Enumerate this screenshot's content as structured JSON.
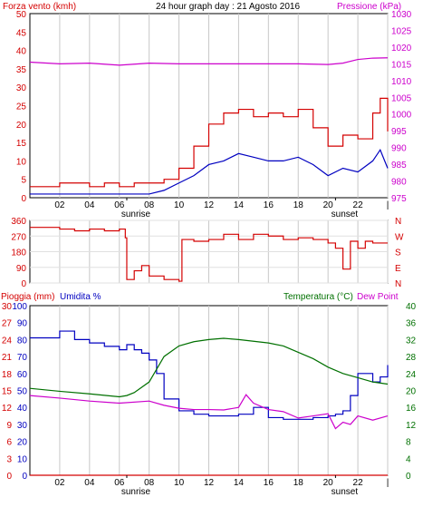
{
  "chart_data": [
    {
      "type": "line",
      "title": "24 hour graph day : 21 Agosto 2016",
      "ylabel_left": "Forza vento (kmh)",
      "ylabel_right": "Pressione (kPa)",
      "xlim": [
        0,
        24
      ],
      "x_ticks": [
        "02",
        "04",
        "06",
        "08",
        "10",
        "12",
        "14",
        "16",
        "18",
        "20",
        "22",
        "|"
      ],
      "markers": [
        {
          "label": "sunrise",
          "x": 6.5
        },
        {
          "label": "sunset",
          "x": 20.5
        }
      ],
      "ylim_left": [
        0,
        50
      ],
      "y_ticks_left": [
        0,
        5,
        10,
        15,
        20,
        25,
        30,
        35,
        40,
        45,
        50
      ],
      "ylim_right": [
        975,
        1030
      ],
      "y_ticks_right": [
        975,
        980,
        985,
        990,
        995,
        1000,
        1005,
        1010,
        1015,
        1020,
        1025,
        1030
      ],
      "colors": {
        "gust": "#d40000",
        "wind": "#0000c0",
        "pressure": "#cc00cc"
      },
      "series": [
        {
          "key": "gust",
          "axis": "left",
          "x": [
            0,
            1,
            2,
            3,
            4,
            5,
            6,
            7,
            8,
            9,
            10,
            11,
            12,
            13,
            14,
            15,
            16,
            17,
            18,
            19,
            20,
            21,
            22,
            23,
            23.5,
            24
          ],
          "values": [
            3,
            3,
            4,
            4,
            3,
            4,
            3,
            4,
            4,
            5,
            8,
            14,
            20,
            23,
            24,
            22,
            23,
            22,
            24,
            19,
            14,
            17,
            16,
            23,
            27,
            18
          ]
        },
        {
          "key": "wind",
          "axis": "left",
          "x": [
            0,
            1,
            2,
            3,
            4,
            5,
            6,
            7,
            8,
            9,
            10,
            11,
            12,
            13,
            14,
            15,
            16,
            17,
            18,
            19,
            20,
            21,
            22,
            23,
            23.5,
            24
          ],
          "values": [
            1,
            1,
            1,
            1,
            1,
            1,
            1,
            1,
            1,
            2,
            4,
            6,
            9,
            10,
            12,
            11,
            10,
            10,
            11,
            9,
            6,
            8,
            7,
            10,
            13,
            8
          ]
        },
        {
          "key": "pressure",
          "axis": "right",
          "x": [
            0,
            2,
            4,
            6,
            8,
            10,
            12,
            14,
            16,
            18,
            20,
            21,
            22,
            23,
            24
          ],
          "values": [
            1015.5,
            1015,
            1015.2,
            1014.6,
            1015.2,
            1015,
            1015,
            1015,
            1015,
            1015,
            1014.8,
            1015.2,
            1016.3,
            1016.7,
            1016.8
          ]
        }
      ]
    },
    {
      "type": "line",
      "ylabel_right": "N W S E N",
      "ylim": [
        0,
        360
      ],
      "y_ticks": [
        0,
        90,
        180,
        270,
        360
      ],
      "direction_letters": [
        "N",
        "W",
        "S",
        "E",
        "N"
      ],
      "colors": {
        "direction": "#d40000"
      },
      "series": [
        {
          "key": "direction",
          "x": [
            0,
            1,
            2,
            3,
            4,
            5,
            6,
            6.4,
            6.5,
            7,
            7.5,
            8,
            9,
            10,
            10.2,
            11,
            12,
            13,
            14,
            15,
            16,
            17,
            18,
            19,
            20,
            20.5,
            21,
            21.5,
            22,
            22.5,
            23,
            24
          ],
          "values": [
            320,
            320,
            310,
            300,
            310,
            300,
            310,
            260,
            20,
            70,
            100,
            40,
            20,
            10,
            250,
            240,
            250,
            280,
            250,
            280,
            270,
            250,
            260,
            250,
            230,
            200,
            80,
            240,
            200,
            240,
            230,
            230
          ]
        }
      ]
    },
    {
      "type": "line",
      "ylabel_left": "Pioggia (mm)",
      "ylabel_left2": "Umidita %",
      "ylabel_right": "Temperatura (°C)",
      "ylabel_right2": "Dew Point",
      "xlim": [
        0,
        24
      ],
      "x_ticks": [
        "02",
        "04",
        "06",
        "08",
        "10",
        "12",
        "14",
        "16",
        "18",
        "20",
        "22",
        "|"
      ],
      "markers": [
        {
          "label": "sunrise",
          "x": 6.5
        },
        {
          "label": "sunset",
          "x": 20.5
        }
      ],
      "ylim_humidity": [
        0,
        100
      ],
      "y_ticks_humidity": [
        0,
        10,
        20,
        30,
        40,
        50,
        60,
        70,
        80,
        90,
        100
      ],
      "ylim_rain": [
        0,
        30
      ],
      "y_ticks_rain": [
        0,
        3,
        6,
        9,
        12,
        15,
        18,
        21,
        24,
        27,
        30
      ],
      "ylim_temp": [
        0,
        40
      ],
      "y_ticks_temp": [
        0,
        4,
        8,
        12,
        16,
        20,
        24,
        28,
        32,
        36,
        40
      ],
      "colors": {
        "humidity": "#0000c0",
        "temperature": "#007000",
        "dew_point": "#cc00cc",
        "rain": "#d40000"
      },
      "series": [
        {
          "key": "humidity",
          "axis": "humidity",
          "x": [
            0,
            1,
            2,
            3,
            4,
            5,
            6,
            6.5,
            7,
            7.5,
            8,
            8.5,
            9,
            10,
            11,
            12,
            13,
            14,
            15,
            16,
            17,
            18,
            19,
            20,
            20.5,
            21,
            21.5,
            22,
            23,
            23.5,
            24
          ],
          "values": [
            81,
            81,
            85,
            80,
            78,
            76,
            74,
            77,
            74,
            72,
            68,
            60,
            45,
            38,
            36,
            35,
            35,
            36,
            40,
            34,
            33,
            33,
            34,
            35,
            36,
            38,
            47,
            60,
            55,
            58,
            65
          ]
        },
        {
          "key": "temperature",
          "axis": "temp",
          "x": [
            0,
            2,
            4,
            6,
            6.5,
            7,
            8,
            9,
            10,
            11,
            12,
            13,
            14,
            15,
            16,
            17,
            18,
            19,
            20,
            21,
            22,
            23,
            24
          ],
          "values": [
            20.5,
            19.8,
            19.2,
            18.5,
            18.8,
            19.5,
            22,
            28,
            30.5,
            31.5,
            32,
            32.3,
            32,
            31.6,
            31.2,
            30.5,
            29,
            27.5,
            25.5,
            24,
            23,
            22,
            21.5
          ]
        },
        {
          "key": "dew_point",
          "axis": "temp",
          "x": [
            0,
            2,
            4,
            6,
            8,
            9,
            10,
            11,
            12,
            13,
            14,
            14.5,
            15,
            16,
            17,
            18,
            19,
            20,
            20.5,
            21,
            21.5,
            22,
            23,
            24
          ],
          "values": [
            18.8,
            18.2,
            17.5,
            17,
            17.5,
            16.5,
            15.8,
            15.5,
            15.5,
            15.4,
            16,
            19,
            17,
            15.5,
            15,
            13.5,
            14,
            14.5,
            11,
            12.5,
            12,
            14,
            13,
            14
          ]
        },
        {
          "key": "rain",
          "axis": "rain",
          "x": [
            0,
            24
          ],
          "values": [
            0,
            0
          ]
        }
      ]
    }
  ]
}
